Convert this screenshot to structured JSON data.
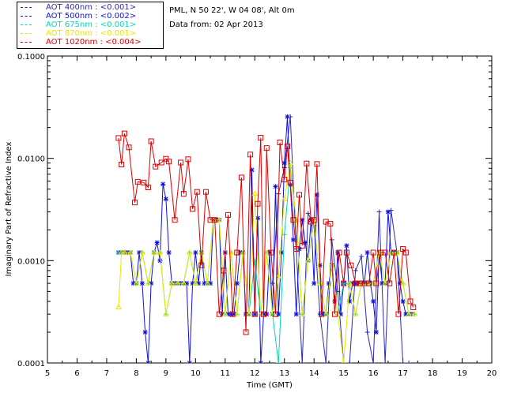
{
  "legend": [
    {
      "label": "AOT  400nm : <0.001>",
      "color": "#2a2ab8"
    },
    {
      "label": "AOT  500nm : <0.002>",
      "color": "#1010dd"
    },
    {
      "label": "AOT  675nm : <0.001>",
      "color": "#00d8b8"
    },
    {
      "label": "AOT  870nm : <0.001>",
      "color": "#e8e800"
    },
    {
      "label": "AOT 1020nm : <0.004>",
      "color": "#dd0000"
    }
  ],
  "info": {
    "location": "PML, N 50 22', W 04 08', Alt 0m",
    "date": "Data from: 02 Apr 2013"
  },
  "chart_data": {
    "type": "line",
    "xlabel": "Time (GMT)",
    "ylabel": "Imaginary Part of Refractive Index",
    "xlim": [
      5,
      20
    ],
    "ylim": [
      0.0001,
      0.1
    ],
    "yscale": "log",
    "xticks": [
      "5",
      "6",
      "7",
      "8",
      "9",
      "10",
      "11",
      "12",
      "13",
      "14",
      "15",
      "16",
      "17",
      "18",
      "19",
      "20"
    ],
    "yticks": [
      {
        "value": 0.1,
        "label": "0.1000"
      },
      {
        "value": 0.01,
        "label": "0.0100"
      },
      {
        "value": 0.001,
        "label": "0.0010"
      },
      {
        "value": 0.0001,
        "label": "0.0001"
      }
    ],
    "series": [
      {
        "name": "AOT 400nm",
        "color": "#2a2ab8",
        "marker": "plus",
        "x": [
          12.6,
          12.8,
          13.0,
          13.2,
          13.4,
          13.6,
          13.8,
          14.0,
          14.2,
          14.4,
          14.6,
          14.8,
          15.0,
          15.2,
          15.4,
          15.6,
          15.8,
          16.0,
          16.2,
          16.4,
          16.6,
          16.8,
          17.0,
          17.2
        ],
        "y": [
          0.0006,
          0.0045,
          0.0081,
          0.0255,
          0.0013,
          0.0001,
          0.0029,
          0.0022,
          0.0003,
          0.0001,
          0.0016,
          0.0005,
          0.0001,
          0.0001,
          0.0008,
          0.0011,
          0.0002,
          0.0001,
          0.003,
          0.0001,
          0.0031,
          0.0012,
          0.0001,
          0.0001
        ]
      },
      {
        "name": "AOT 500nm",
        "color": "#1010dd",
        "marker": "star",
        "x": [
          7.4,
          7.5,
          7.6,
          7.7,
          7.8,
          7.9,
          8.0,
          8.1,
          8.2,
          8.3,
          8.4,
          8.5,
          8.6,
          8.7,
          8.8,
          8.9,
          9.0,
          9.1,
          9.2,
          9.3,
          9.4,
          9.5,
          9.6,
          9.7,
          9.8,
          9.9,
          10.0,
          10.1,
          10.2,
          10.3,
          10.4,
          10.5,
          10.6,
          10.7,
          10.8,
          10.9,
          11.0,
          11.1,
          11.2,
          11.3,
          11.4,
          11.5,
          11.6,
          11.7,
          11.8,
          11.9,
          12.0,
          12.1,
          12.2,
          12.3,
          12.4,
          12.5,
          12.6,
          12.7,
          12.8,
          12.9,
          13.0,
          13.1,
          13.2,
          13.3,
          13.4,
          13.5,
          13.6,
          13.7,
          13.8,
          13.9,
          14.0,
          14.1,
          14.2,
          14.3,
          14.4,
          14.5,
          14.6,
          14.7,
          14.8,
          14.9,
          15.0,
          15.1,
          15.2,
          15.3,
          15.4,
          15.5,
          15.6,
          15.7,
          15.8,
          15.9,
          16.0,
          16.1,
          16.2,
          16.3,
          16.4,
          16.5,
          16.6,
          16.7,
          16.8,
          16.9,
          17.0,
          17.1,
          17.2,
          17.3
        ],
        "y": [
          0.0012,
          0.0012,
          0.0012,
          0.0012,
          0.0012,
          0.0006,
          0.0006,
          0.0012,
          0.0006,
          0.0002,
          0.0001,
          0.0006,
          0.0012,
          0.0015,
          0.001,
          0.0056,
          0.004,
          0.0012,
          0.0006,
          0.0006,
          0.0006,
          0.0006,
          0.0006,
          0.0006,
          0.0001,
          0.0006,
          0.0012,
          0.0006,
          0.0012,
          0.0006,
          0.0006,
          0.0006,
          0.0025,
          0.0025,
          0.0025,
          0.0003,
          0.0012,
          0.0003,
          0.0003,
          0.0003,
          0.0006,
          0.0012,
          0.0012,
          0.0003,
          0.0003,
          0.0077,
          0.0003,
          0.0026,
          0.0001,
          0.0003,
          0.0003,
          0.0012,
          0.0003,
          0.0053,
          0.0003,
          0.0012,
          0.009,
          0.0255,
          0.0055,
          0.0016,
          0.0003,
          0.0013,
          0.0025,
          0.0015,
          0.001,
          0.0025,
          0.0006,
          0.0044,
          0.0009,
          0.0003,
          0.0003,
          0.0006,
          0.0009,
          0.0004,
          0.0012,
          0.0003,
          0.0006,
          0.0014,
          0.0004,
          0.0006,
          0.0006,
          0.0006,
          0.0006,
          0.0006,
          0.0012,
          0.0006,
          0.0004,
          0.0002,
          0.0012,
          0.0006,
          0.0006,
          0.003,
          0.0012,
          0.0012,
          0.0012,
          0.0006,
          0.0004,
          0.0003,
          0.0003,
          0.0003
        ]
      },
      {
        "name": "AOT 675nm",
        "color": "#00d8b8",
        "marker": "plus",
        "x": [
          7.4,
          7.6,
          7.8,
          8.0,
          8.2,
          8.4,
          8.6,
          8.8,
          9.0,
          9.2,
          9.4,
          9.6,
          9.8,
          10.0,
          10.2,
          10.4,
          10.6,
          10.8,
          11.0,
          11.2,
          11.4,
          11.6,
          11.8,
          12.0,
          12.2,
          12.4,
          12.6,
          12.8,
          13.0,
          13.2,
          13.4,
          13.6,
          13.8,
          14.0,
          14.2,
          14.4,
          14.6,
          14.8,
          15.0,
          15.2,
          15.4,
          15.6,
          15.8,
          16.0,
          16.2,
          16.4,
          16.6,
          16.8,
          17.0,
          17.2,
          17.4
        ],
        "y": [
          0.0012,
          0.0012,
          0.0012,
          0.0006,
          0.0012,
          0.0006,
          0.0012,
          0.0012,
          0.0003,
          0.0006,
          0.0006,
          0.0006,
          0.0012,
          0.0006,
          0.0012,
          0.0006,
          0.0025,
          0.0025,
          0.0003,
          0.0012,
          0.0003,
          0.0012,
          0.0003,
          0.001,
          0.0003,
          0.0012,
          0.0003,
          0.0001,
          0.0018,
          0.0081,
          0.0025,
          0.0003,
          0.001,
          0.0025,
          0.0006,
          0.0003,
          0.0009,
          0.0003,
          0.0006,
          0.0006,
          0.0003,
          0.0006,
          0.0006,
          0.0006,
          0.0012,
          0.0006,
          0.0012,
          0.0012,
          0.0006,
          0.0003,
          0.0003
        ]
      },
      {
        "name": "AOT 870nm",
        "color": "#e8e800",
        "marker": "triangle",
        "x": [
          7.4,
          7.5,
          7.6,
          7.8,
          8.0,
          8.2,
          8.4,
          8.6,
          8.8,
          9.0,
          9.2,
          9.4,
          9.6,
          9.8,
          10.0,
          10.2,
          10.4,
          10.6,
          10.8,
          11.0,
          11.2,
          11.4,
          11.6,
          11.8,
          12.0,
          12.2,
          12.4,
          12.6,
          12.8,
          13.0,
          13.2,
          13.4,
          13.6,
          13.8,
          14.0,
          14.2,
          14.4,
          14.6,
          14.8,
          15.0,
          15.2,
          15.4,
          15.6,
          15.8,
          16.0,
          16.2,
          16.4,
          16.6,
          16.8,
          17.0,
          17.2,
          17.4
        ],
        "y": [
          0.00035,
          0.0012,
          0.0012,
          0.0012,
          0.0006,
          0.0012,
          0.0006,
          0.0012,
          0.0012,
          0.0003,
          0.0006,
          0.0006,
          0.0006,
          0.0012,
          0.0006,
          0.0012,
          0.0006,
          0.0025,
          0.0025,
          0.0003,
          0.0012,
          0.0003,
          0.0012,
          0.0003,
          0.0045,
          0.0003,
          0.0012,
          0.0003,
          0.0007,
          0.004,
          0.009,
          0.0025,
          0.0003,
          0.001,
          0.0025,
          0.0006,
          0.0003,
          0.0009,
          0.0003,
          0.0001,
          0.0006,
          0.0003,
          0.0006,
          0.0006,
          0.0006,
          0.0012,
          0.0006,
          0.0012,
          0.0012,
          0.0006,
          0.0003,
          0.0003
        ]
      },
      {
        "name": "AOT 1020nm",
        "color": "#dd0000",
        "marker": "square",
        "x": [
          7.4,
          7.5,
          7.6,
          7.75,
          7.95,
          8.05,
          8.25,
          8.4,
          8.5,
          8.65,
          8.85,
          9.0,
          9.1,
          9.3,
          9.5,
          9.6,
          9.75,
          9.9,
          10.05,
          10.2,
          10.35,
          10.5,
          10.65,
          10.8,
          10.95,
          11.1,
          11.25,
          11.4,
          11.55,
          11.7,
          11.85,
          12.0,
          12.1,
          12.2,
          12.3,
          12.4,
          12.55,
          12.7,
          12.85,
          13.0,
          13.1,
          13.2,
          13.3,
          13.4,
          13.5,
          13.6,
          13.75,
          13.9,
          14.0,
          14.1,
          14.25,
          14.4,
          14.55,
          14.7,
          14.85,
          15.0,
          15.1,
          15.25,
          15.4,
          15.55,
          15.7,
          15.85,
          16.0,
          16.1,
          16.25,
          16.4,
          16.55,
          16.7,
          16.85,
          17.0,
          17.1,
          17.25,
          17.35
        ],
        "y": [
          0.0158,
          0.0087,
          0.0175,
          0.0128,
          0.0037,
          0.0059,
          0.0058,
          0.0052,
          0.0147,
          0.0083,
          0.0091,
          0.0099,
          0.0093,
          0.0025,
          0.0091,
          0.0045,
          0.0098,
          0.0032,
          0.0047,
          0.0009,
          0.0047,
          0.0025,
          0.0025,
          0.0003,
          0.0008,
          0.0028,
          0.0003,
          0.0012,
          0.0065,
          0.0002,
          0.0109,
          0.0003,
          0.0036,
          0.0159,
          0.0003,
          0.0126,
          0.0012,
          0.0003,
          0.0143,
          0.0062,
          0.0131,
          0.0058,
          0.0025,
          0.0013,
          0.0044,
          0.0014,
          0.0089,
          0.0024,
          0.0025,
          0.0088,
          0.0003,
          0.0024,
          0.0023,
          0.0003,
          0.0012,
          0.0006,
          0.0012,
          0.0009,
          0.0006,
          0.0006,
          0.0006,
          0.0006,
          0.0012,
          0.0006,
          0.0012,
          0.0012,
          0.0006,
          0.0012,
          0.0003,
          0.0013,
          0.0012,
          0.0004,
          0.00035
        ]
      }
    ]
  }
}
